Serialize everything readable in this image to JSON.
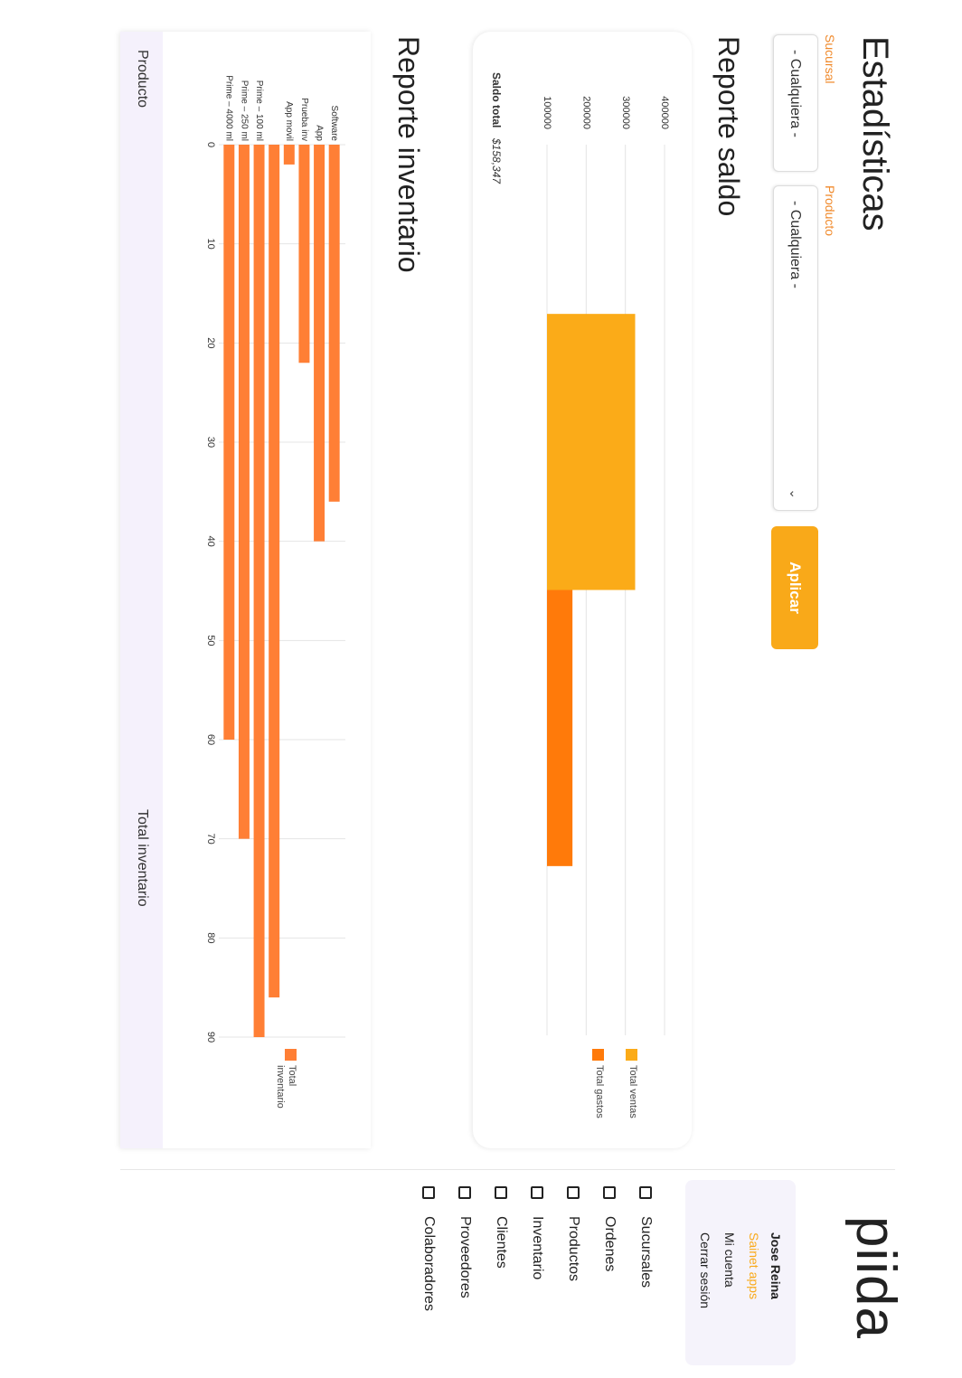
{
  "header": {
    "title": "Estadísticas"
  },
  "filters": {
    "sucursal": {
      "label": "Sucursal",
      "value": "- Cualquiera -"
    },
    "producto": {
      "label": "Producto",
      "value": "- Cualquiera -"
    },
    "apply": "Aplicar"
  },
  "sections": {
    "saldo": "Reporte saldo",
    "inventario": "Reporte inventario"
  },
  "saldo_total": {
    "label": "Saldo total",
    "value": "$158,347"
  },
  "table": {
    "columns": [
      "Producto",
      "Total inventario"
    ]
  },
  "sidebar": {
    "logo": "piida",
    "user": {
      "name": "Jose Reina",
      "company": "Sainet apps",
      "links": [
        "Mi cuenta",
        "Cerrar sesión"
      ]
    },
    "menu": [
      "Sucursales",
      "Ordenes",
      "Productos",
      "Inventario",
      "Clientes",
      "Proveedores",
      "Colaboradores"
    ]
  },
  "chart_data": [
    {
      "type": "bar",
      "categories": [
        null
      ],
      "series": [
        {
          "name": "Total ventas",
          "color": "#fbab18",
          "values": [
            325000
          ]
        },
        {
          "name": "Total gastos",
          "color": "#ff7a0a",
          "values": [
            165000
          ]
        }
      ],
      "ylim": [
        100000,
        400000
      ],
      "yticks": [
        100000,
        200000,
        300000,
        400000
      ],
      "grid": true
    },
    {
      "type": "barh",
      "categories": [
        "Software",
        "App",
        "Prueba inv",
        "App movil",
        null,
        "Prime – 100 ml",
        "Prime – 250 ml",
        "Prime – 4000 ml"
      ],
      "series": [
        {
          "name": "Total inventario",
          "color": "#ff7f35",
          "values": [
            36,
            40,
            22,
            2,
            86,
            90,
            70,
            60
          ]
        }
      ],
      "xlim": [
        0,
        90
      ],
      "xticks": [
        0,
        10,
        20,
        30,
        40,
        50,
        60,
        70,
        80,
        90
      ],
      "grid": true
    }
  ]
}
